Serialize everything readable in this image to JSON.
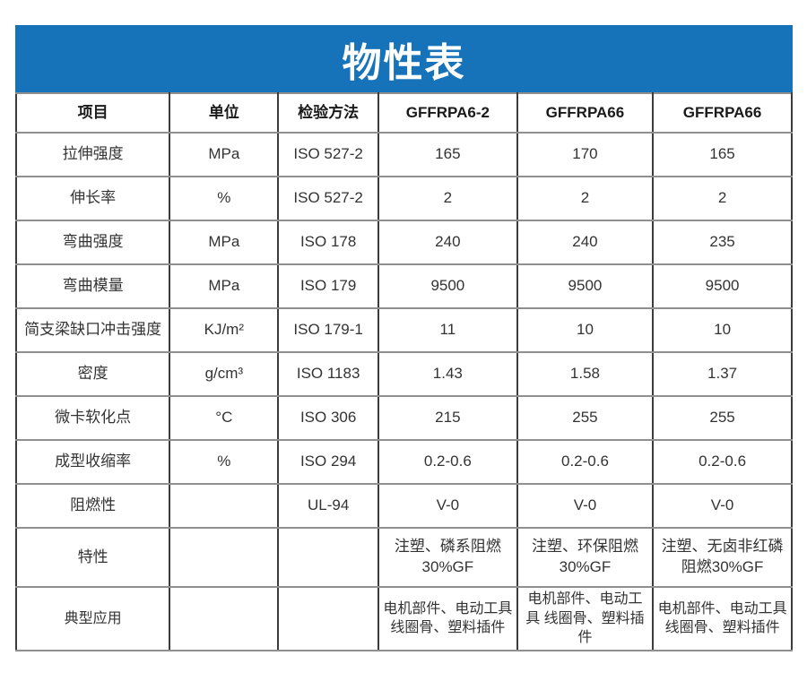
{
  "title": "物性表",
  "colors": {
    "title_bg": "#1773b9",
    "title_text": "#ffffff",
    "cell_text": "#333333",
    "border_dark": "#3c3c3c",
    "border_gray": "#8f8f8f"
  },
  "table": {
    "columns": [
      "项目",
      "单位",
      "检验方法",
      "GFFRPA6-2",
      "GFFRPA66",
      "GFFRPA66"
    ],
    "rows": [
      {
        "item": "拉伸强度",
        "unit": "MPa",
        "method": "ISO 527-2",
        "v1": "165",
        "v2": "170",
        "v3": "165"
      },
      {
        "item": "伸长率",
        "unit": "%",
        "method": "ISO 527-2",
        "v1": "2",
        "v2": "2",
        "v3": "2"
      },
      {
        "item": "弯曲强度",
        "unit": "MPa",
        "method": "ISO 178",
        "v1": "240",
        "v2": "240",
        "v3": "235"
      },
      {
        "item": "弯曲模量",
        "unit": "MPa",
        "method": "ISO 179",
        "v1": "9500",
        "v2": "9500",
        "v3": "9500"
      },
      {
        "item": "简支梁缺口冲击强度",
        "unit": "KJ/m²",
        "method": "ISO 179-1",
        "v1": "11",
        "v2": "10",
        "v3": "10"
      },
      {
        "item": "密度",
        "unit": "g/cm³",
        "method": "ISO 1183",
        "v1": "1.43",
        "v2": "1.58",
        "v3": "1.37"
      },
      {
        "item": "微卡软化点",
        "unit": "°C",
        "method": "ISO 306",
        "v1": "215",
        "v2": "255",
        "v3": "255"
      },
      {
        "item": "成型收缩率",
        "unit": "%",
        "method": "ISO 294",
        "v1": "0.2-0.6",
        "v2": "0.2-0.6",
        "v3": "0.2-0.6"
      },
      {
        "item": "阻燃性",
        "unit": "",
        "method": "UL-94",
        "v1": "V-0",
        "v2": "V-0",
        "v3": "V-0"
      },
      {
        "item": "特性",
        "unit": "",
        "method": "",
        "v1": "注塑、磷系阻燃 30%GF",
        "v2": "注塑、环保阻燃 30%GF",
        "v3": "注塑、无卤非红磷 阻燃30%GF"
      },
      {
        "item": "典型应用",
        "unit": "",
        "method": "",
        "v1": "电机部件、电动工具 线圈骨、塑料插件",
        "v2": "电机部件、电动工具 线圈骨、塑料插件",
        "v3": "电机部件、电动工具 线圈骨、塑料插件"
      }
    ]
  }
}
